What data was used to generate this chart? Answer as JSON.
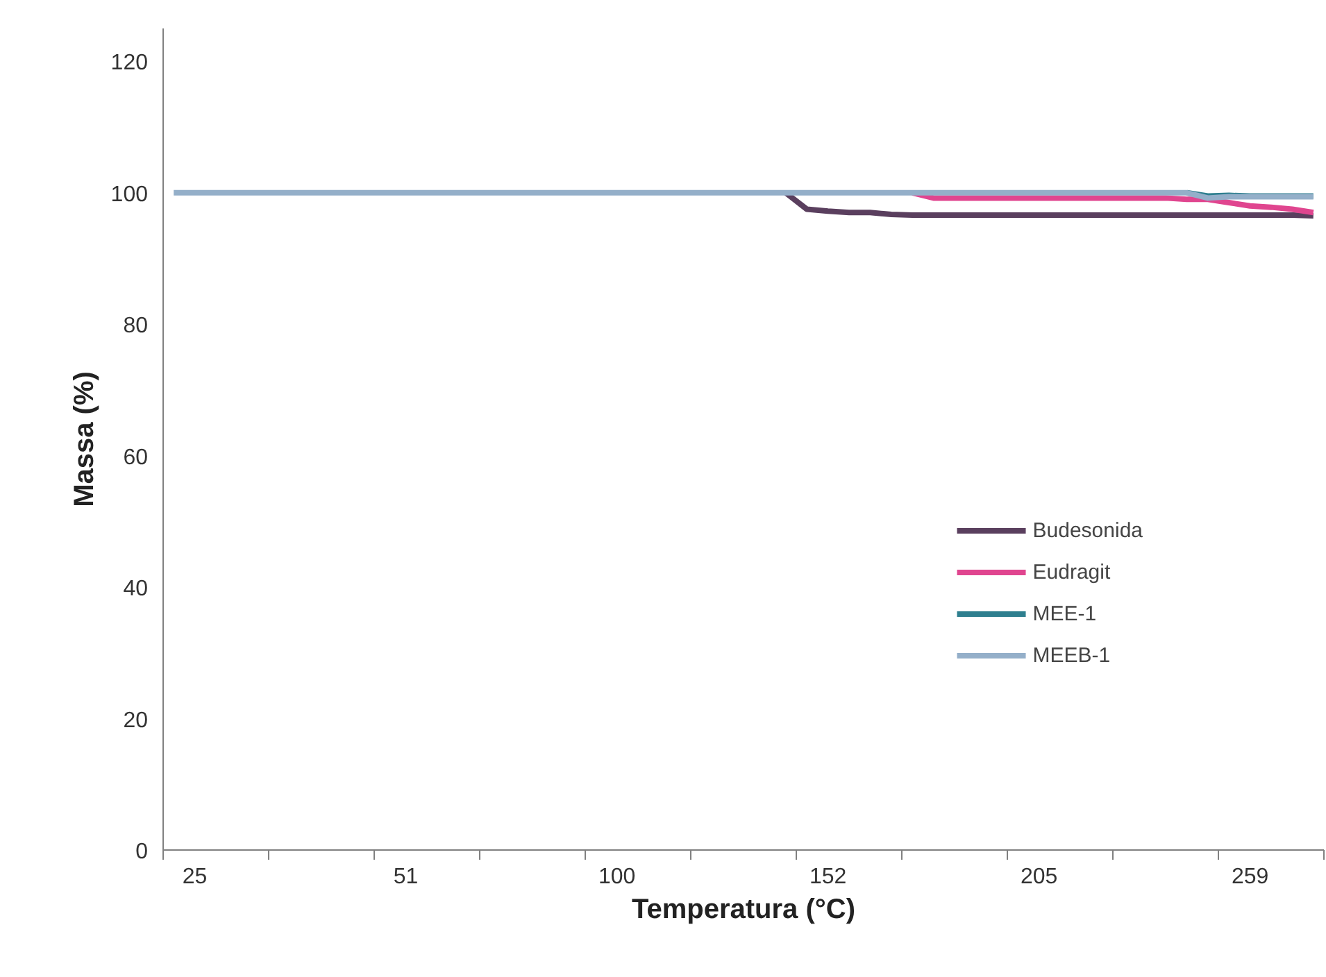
{
  "chart_data": {
    "type": "line",
    "xlabel": "Temperatura (°C)",
    "ylabel": "Massa (%)",
    "categories": [
      null,
      "25",
      null,
      null,
      null,
      null,
      null,
      null,
      null,
      null,
      null,
      "51",
      null,
      null,
      null,
      null,
      null,
      null,
      null,
      null,
      null,
      "100",
      null,
      null,
      null,
      null,
      null,
      null,
      null,
      null,
      null,
      "152",
      null,
      null,
      null,
      null,
      null,
      null,
      null,
      null,
      null,
      "205",
      null,
      null,
      null,
      null,
      null,
      null,
      null,
      null,
      null,
      "259",
      null,
      null,
      null
    ],
    "ylim": [
      0,
      125
    ],
    "yticks": [
      0,
      20,
      40,
      60,
      80,
      100,
      120
    ],
    "grid": false,
    "legend": "bottom right",
    "series": [
      {
        "name": "Budesonida",
        "color": "#5a3f5e",
        "values": [
          null,
          null,
          null,
          null,
          null,
          null,
          null,
          null,
          null,
          null,
          null,
          null,
          null,
          null,
          null,
          null,
          null,
          null,
          null,
          null,
          null,
          null,
          null,
          null,
          null,
          null,
          null,
          null,
          null,
          100,
          97.5,
          97.2,
          97,
          97,
          96.7,
          96.6,
          96.6,
          96.6,
          96.6,
          96.6,
          96.6,
          96.6,
          96.6,
          96.6,
          96.6,
          96.6,
          96.6,
          96.6,
          96.6,
          96.6,
          96.6,
          96.6,
          96.6,
          96.6,
          96.5
        ]
      },
      {
        "name": "Eudragit",
        "color": "#e0458f",
        "values": [
          null,
          null,
          null,
          null,
          null,
          null,
          null,
          null,
          null,
          null,
          null,
          null,
          null,
          null,
          null,
          null,
          null,
          null,
          null,
          null,
          null,
          null,
          null,
          null,
          null,
          null,
          null,
          null,
          null,
          null,
          null,
          null,
          null,
          null,
          null,
          100,
          99.2,
          99.2,
          99.2,
          99.2,
          99.2,
          99.2,
          99.2,
          99.2,
          99.2,
          99.2,
          99.2,
          99.2,
          99,
          99,
          98.5,
          98,
          97.8,
          97.5,
          97
        ]
      },
      {
        "name": "MEE-1",
        "color": "#2e7f8f",
        "values": [
          null,
          null,
          null,
          null,
          null,
          null,
          null,
          null,
          null,
          null,
          null,
          null,
          null,
          null,
          null,
          null,
          null,
          null,
          null,
          null,
          null,
          null,
          null,
          null,
          null,
          null,
          null,
          null,
          null,
          null,
          null,
          null,
          null,
          null,
          null,
          null,
          null,
          null,
          null,
          null,
          null,
          null,
          null,
          null,
          null,
          null,
          null,
          null,
          100,
          99.5,
          99.6,
          99.5,
          99.5,
          99.5,
          99.5
        ]
      },
      {
        "name": "MEEB-1",
        "color": "#94afc9",
        "values": [
          100,
          100,
          100,
          100,
          100,
          100,
          100,
          100,
          100,
          100,
          100,
          100,
          100,
          100,
          100,
          100,
          100,
          100,
          100,
          100,
          100,
          100,
          100,
          100,
          100,
          100,
          100,
          100,
          100,
          100,
          100,
          100,
          100,
          100,
          100,
          100,
          100,
          100,
          100,
          100,
          100,
          100,
          100,
          100,
          100,
          100,
          100,
          100,
          100,
          99.2,
          99.4,
          99.4,
          99.4,
          99.4,
          99.4
        ]
      }
    ]
  }
}
